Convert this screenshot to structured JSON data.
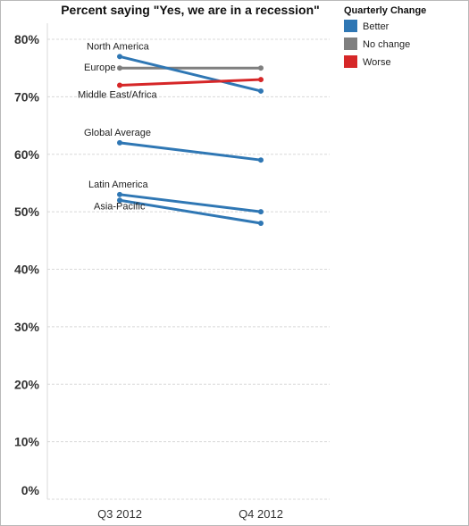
{
  "chart_data": {
    "type": "line",
    "title": "Percent saying \"Yes, we are in a recession\"",
    "x": [
      "Q3 2012",
      "Q4 2012"
    ],
    "ylim": [
      0,
      80
    ],
    "yticks": [
      "0%",
      "10%",
      "20%",
      "30%",
      "40%",
      "50%",
      "60%",
      "70%",
      "80%"
    ],
    "grid": true,
    "legend": {
      "title": "Quarterly Change",
      "placement": "right",
      "entries": [
        {
          "key": "better",
          "label": "Better",
          "color": "#2f77b4"
        },
        {
          "key": "nochange",
          "label": "No change",
          "color": "#7f7f7f"
        },
        {
          "key": "worse",
          "label": "Worse",
          "color": "#d62728"
        }
      ]
    },
    "series": [
      {
        "name": "North America",
        "change": "better",
        "values": [
          77,
          71
        ]
      },
      {
        "name": "Europe",
        "change": "nochange",
        "values": [
          75,
          75
        ]
      },
      {
        "name": "Middle East/Africa",
        "change": "worse",
        "values": [
          72,
          73
        ]
      },
      {
        "name": "Global Average",
        "change": "better",
        "values": [
          62,
          59
        ]
      },
      {
        "name": "Latin America",
        "change": "better",
        "values": [
          53,
          50
        ]
      },
      {
        "name": "Asia-Pacific",
        "change": "better",
        "values": [
          52,
          48
        ]
      }
    ]
  }
}
